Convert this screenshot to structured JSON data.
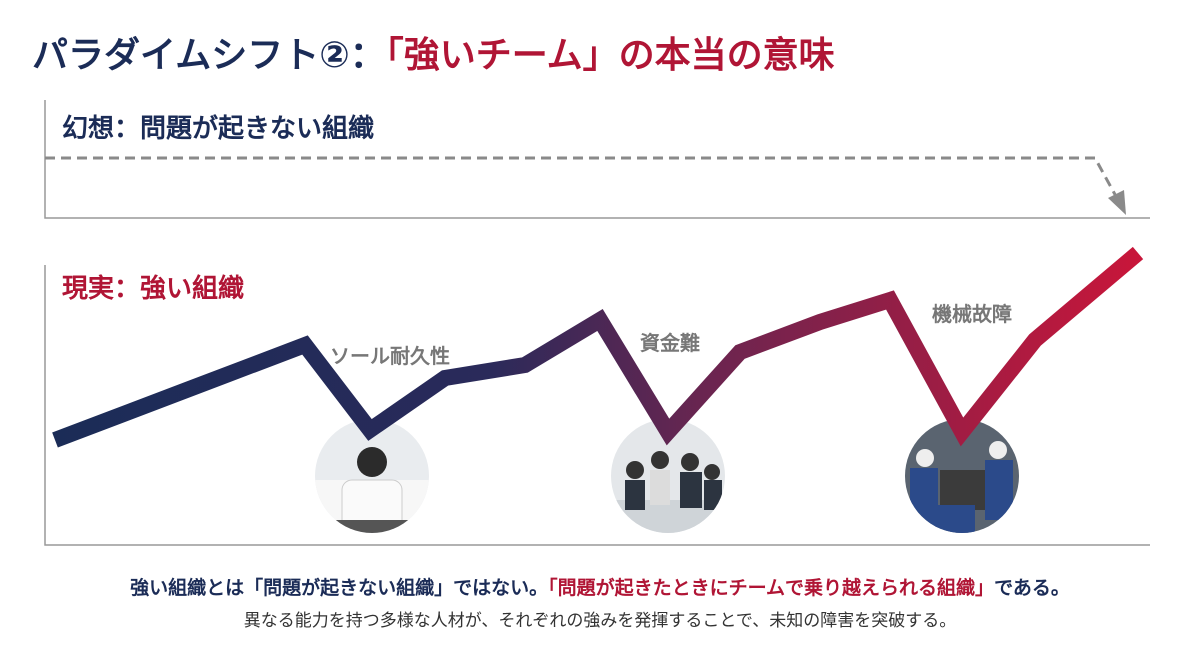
{
  "header": {
    "title_prefix": "パラダイムシフト②：",
    "title_highlight": "「強いチーム」の本当の意味"
  },
  "illusion": {
    "label": "幻想：問題が起きない組織"
  },
  "reality": {
    "label": "現実：強い組織",
    "events": [
      {
        "label": "ソール耐久性"
      },
      {
        "label": "資金難"
      },
      {
        "label": "機械故障"
      }
    ]
  },
  "footer": {
    "line1_start": "強い組織とは「問題が起きない組織」ではない。",
    "line1_highlight": "「問題が起きたときにチームで乗り越えられる組織」",
    "line1_end": "である。",
    "line2": "異なる能力を持つ多様な人材が、それぞれの強みを発揮することで、未知の障害を突破する。"
  }
}
